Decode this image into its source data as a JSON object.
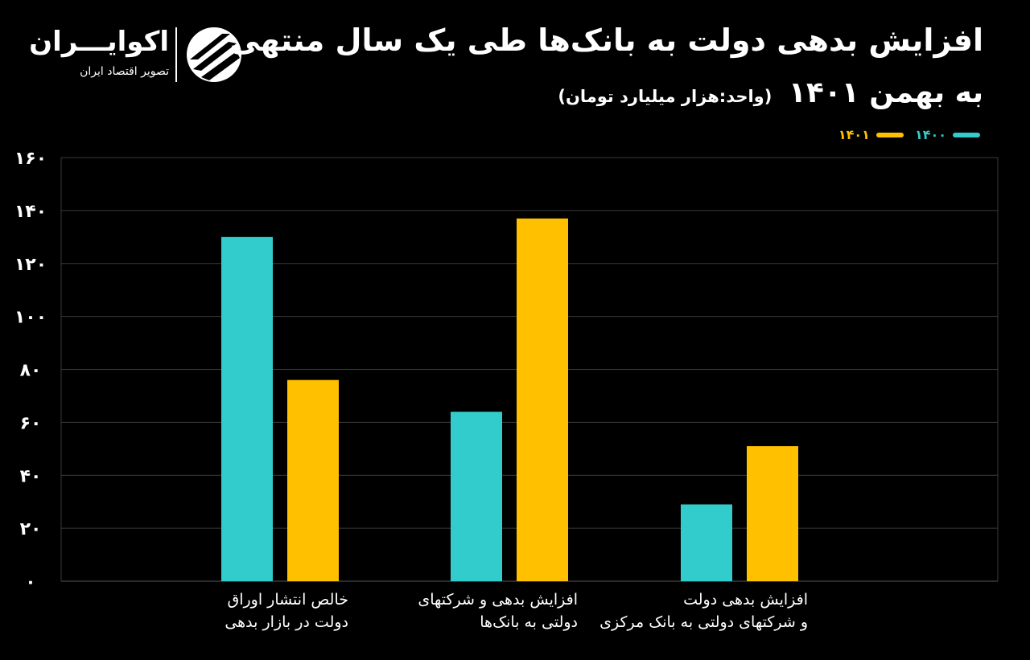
{
  "brand": {
    "name": "اکوایـــران",
    "tagline": "تصویر اقتصاد ایران"
  },
  "title": {
    "line1": "افزایش بدهی دولت به بانک‌ها طی یک سال منتهی",
    "line2_main": "به بهمن ۱۴۰۱",
    "line2_unit": "(واحد:هزار میلیارد تومان)"
  },
  "colors": {
    "background": "#000000",
    "series_1400": "#33CCCC",
    "series_1401": "#FFC000",
    "grid": "#3A3A3A",
    "text": "#FFFFFF"
  },
  "chart_data": {
    "type": "bar",
    "categories": [
      [
        "خالص انتشار اوراق",
        "دولت در بازار بدهی"
      ],
      [
        "افزایش بدهی و شرکتهای",
        "دولتی به بانک‌ها"
      ],
      [
        "افزایش بدهی دولت",
        "و شرکتهای دولتی به بانک مرکزی"
      ]
    ],
    "series": [
      {
        "name": "۱۴۰۰",
        "color": "#33CCCC",
        "values": [
          130,
          64,
          29
        ]
      },
      {
        "name": "۱۴۰۱",
        "color": "#FFC000",
        "values": [
          76,
          137,
          51
        ]
      }
    ],
    "ylim": [
      0,
      160
    ],
    "yticks": [
      0,
      20,
      40,
      60,
      80,
      100,
      120,
      140,
      160
    ],
    "ytick_labels": [
      "۰",
      "۲۰",
      "۴۰",
      "۶۰",
      "۸۰",
      "۱۰۰",
      "۱۲۰",
      "۱۴۰",
      "۱۶۰"
    ],
    "grid": true,
    "legend_position": "top-right"
  }
}
